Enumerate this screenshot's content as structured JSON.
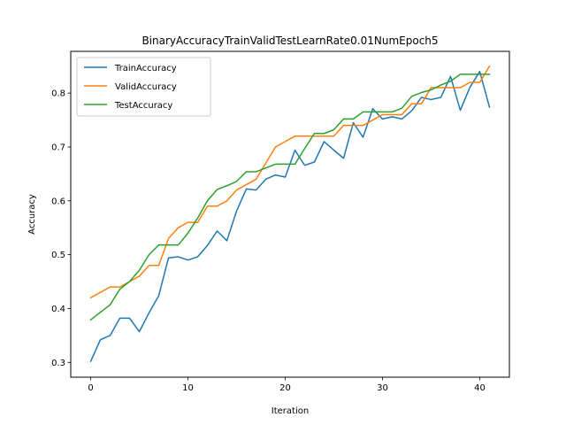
{
  "chart_data": {
    "type": "line",
    "title": "BinaryAccuracyTrainValidTestLearnRate0.01NumEpoch5",
    "xlabel": "Iteration",
    "ylabel": "Accuracy",
    "xlim": [
      -2.05,
      43.05
    ],
    "ylim": [
      0.2725,
      0.8775
    ],
    "xticks": [
      0,
      10,
      20,
      30,
      40
    ],
    "yticks": [
      0.3,
      0.4,
      0.5,
      0.6,
      0.7,
      0.8
    ],
    "xtick_labels": [
      "0",
      "10",
      "20",
      "30",
      "40"
    ],
    "ytick_labels": [
      "0.3",
      "0.4",
      "0.5",
      "0.6",
      "0.7",
      "0.8"
    ],
    "grid": false,
    "legend_position": "upper-left",
    "x": [
      0,
      1,
      2,
      3,
      4,
      5,
      6,
      7,
      8,
      9,
      10,
      11,
      12,
      13,
      14,
      15,
      16,
      17,
      18,
      19,
      20,
      21,
      22,
      23,
      24,
      25,
      26,
      27,
      28,
      29,
      30,
      31,
      32,
      33,
      34,
      35,
      36,
      37,
      38,
      39,
      40,
      41
    ],
    "series": [
      {
        "name": "TrainAccuracy",
        "color": "#1f77b4",
        "values": [
          0.302,
          0.342,
          0.35,
          0.382,
          0.382,
          0.357,
          0.392,
          0.424,
          0.494,
          0.496,
          0.49,
          0.496,
          0.517,
          0.544,
          0.526,
          0.581,
          0.622,
          0.62,
          0.64,
          0.648,
          0.644,
          0.694,
          0.666,
          0.672,
          0.71,
          0.694,
          0.679,
          0.745,
          0.718,
          0.771,
          0.752,
          0.756,
          0.752,
          0.767,
          0.792,
          0.788,
          0.792,
          0.831,
          0.768,
          0.811,
          0.84,
          0.774
        ]
      },
      {
        "name": "ValidAccuracy",
        "color": "#ff7f0e",
        "values": [
          0.42,
          0.43,
          0.44,
          0.44,
          0.45,
          0.46,
          0.48,
          0.48,
          0.53,
          0.55,
          0.56,
          0.56,
          0.59,
          0.59,
          0.6,
          0.62,
          0.63,
          0.64,
          0.67,
          0.7,
          0.71,
          0.72,
          0.72,
          0.72,
          0.72,
          0.72,
          0.74,
          0.74,
          0.74,
          0.75,
          0.76,
          0.76,
          0.76,
          0.78,
          0.78,
          0.81,
          0.81,
          0.81,
          0.81,
          0.82,
          0.82,
          0.85
        ]
      },
      {
        "name": "TestAccuracy",
        "color": "#2ca02c",
        "values": [
          0.379,
          0.393,
          0.407,
          0.436,
          0.45,
          0.471,
          0.5,
          0.518,
          0.518,
          0.518,
          0.54,
          0.568,
          0.6,
          0.621,
          0.628,
          0.636,
          0.654,
          0.654,
          0.661,
          0.668,
          0.668,
          0.668,
          0.697,
          0.725,
          0.725,
          0.732,
          0.752,
          0.752,
          0.765,
          0.765,
          0.765,
          0.765,
          0.772,
          0.794,
          0.801,
          0.806,
          0.815,
          0.822,
          0.835,
          0.835,
          0.835,
          0.835
        ]
      }
    ]
  }
}
